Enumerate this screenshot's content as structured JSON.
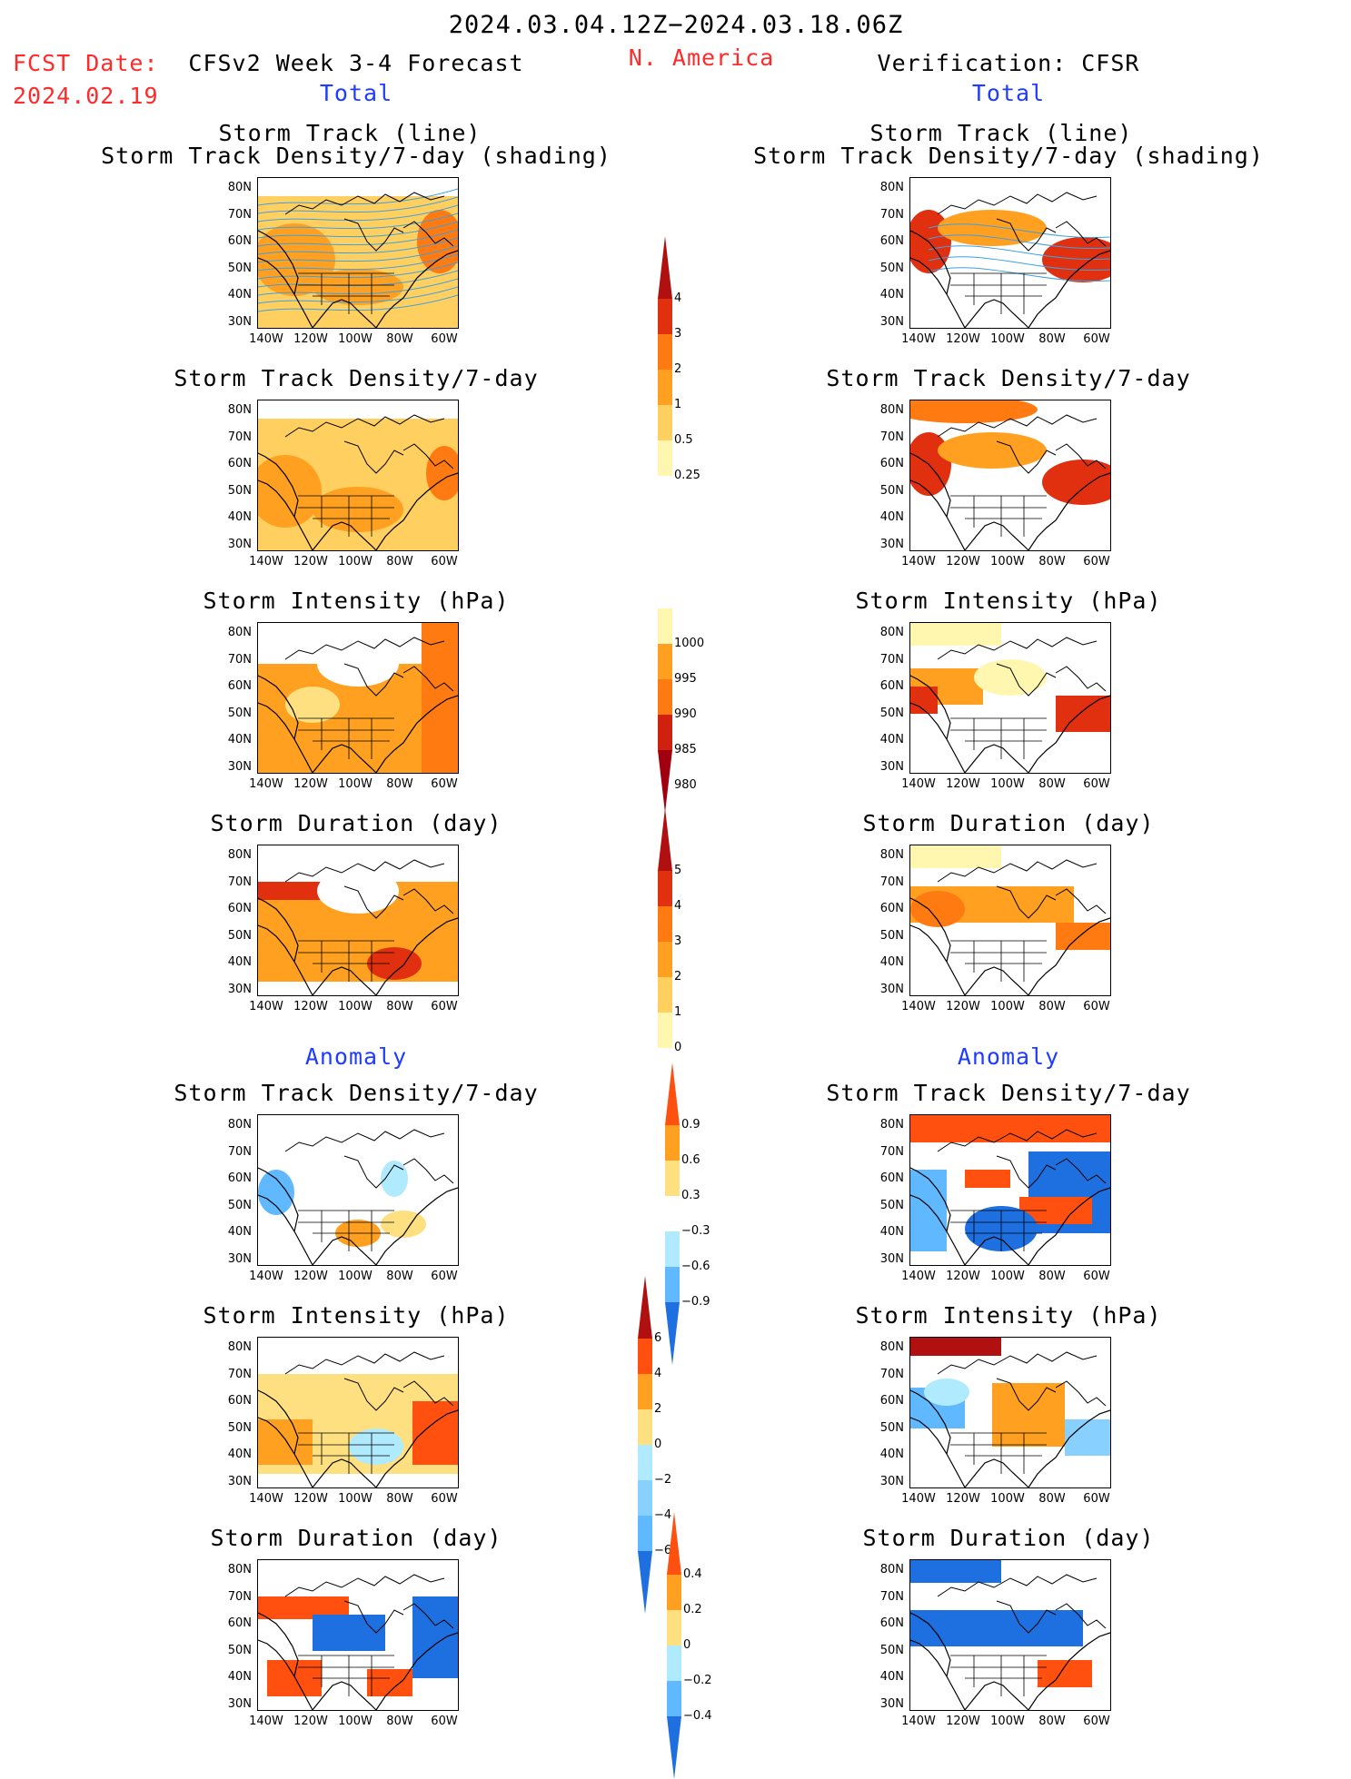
{
  "header": {
    "date_range": "2024.03.04.12Z−2024.03.18.06Z",
    "region": "N. America",
    "fcst_label": "FCST Date:",
    "fcst_date": "2024.02.19",
    "left_title": "CFSv2 Week 3-4 Forecast",
    "right_title": "Verification: CFSR",
    "total_left": "Total",
    "total_right": "Total",
    "anomaly_left": "Anomaly",
    "anomaly_right": "Anomaly"
  },
  "axes": {
    "lat_labels": [
      "80N",
      "70N",
      "60N",
      "50N",
      "40N",
      "30N"
    ],
    "lon_labels": [
      "140W",
      "120W",
      "100W",
      "80W",
      "60W"
    ]
  },
  "panels": {
    "p1_title_a": "Storm Track (line)",
    "p1_title_b": "Storm Track Density/7-day (shading)",
    "p2_title": "Storm Track Density/7-day",
    "p3_title": "Storm Intensity (hPa)",
    "p4_title": "Storm Duration (day)",
    "p5_title": "Storm Track Density/7-day",
    "p6_title": "Storm Intensity (hPa)",
    "p7_title": "Storm Duration (day)"
  },
  "colorbars": {
    "density_total": {
      "labels": [
        "4",
        "3",
        "2",
        "1",
        "0.5",
        "0.25"
      ],
      "colors": [
        "#b01010",
        "#e03010",
        "#ff7a10",
        "#ffa020",
        "#ffd060",
        "#fff6b0"
      ]
    },
    "intensity_total": {
      "labels": [
        "1000",
        "995",
        "990",
        "985",
        "980"
      ],
      "colors": [
        "#fff6b0",
        "#ffa020",
        "#ff7a10",
        "#d02010",
        "#a00010"
      ]
    },
    "duration_total": {
      "labels": [
        "5",
        "4",
        "3",
        "2",
        "1",
        "0"
      ],
      "colors": [
        "#b01010",
        "#e03010",
        "#ff7a10",
        "#ffa020",
        "#ffd060",
        "#fff6b0"
      ]
    },
    "density_anom": {
      "labels": [
        "0.9",
        "0.6",
        "0.3",
        "−0.3",
        "−0.6",
        "−0.9"
      ],
      "colors": [
        "#ff5010",
        "#ffa020",
        "#ffe080",
        "#ffffff",
        "#b0eaff",
        "#60b8ff",
        "#1e6fe0"
      ]
    },
    "intensity_anom": {
      "labels": [
        "6",
        "4",
        "2",
        "0",
        "−2",
        "−4",
        "−6"
      ],
      "colors": [
        "#b01010",
        "#ff5010",
        "#ffa020",
        "#ffe080",
        "#b0eaff",
        "#88d0ff",
        "#60b8ff",
        "#1e6fe0"
      ]
    },
    "duration_anom": {
      "labels": [
        "0.4",
        "0.2",
        "0",
        "−0.2",
        "−0.4"
      ],
      "colors": [
        "#ff5010",
        "#ffa020",
        "#ffe080",
        "#b0eaff",
        "#60b8ff",
        "#1e6fe0"
      ]
    }
  }
}
